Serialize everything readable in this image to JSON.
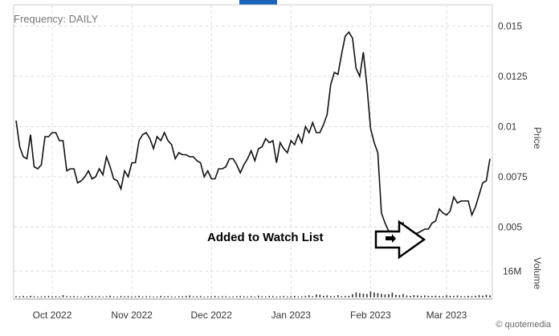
{
  "header": {
    "frequency_label": "Frequency: DAILY",
    "tab_color": "#1a63b8"
  },
  "annotation": {
    "text": "Added to Watch List",
    "marker": "arrow-icon"
  },
  "credit": {
    "text": "© quotemedia"
  },
  "axes": {
    "price_title": "Price",
    "volume_title": "Volume"
  },
  "colors": {
    "line": "#111111",
    "grid": "#cccccc",
    "bars": "#333333"
  },
  "chart_data": [
    {
      "type": "line",
      "title": "",
      "xlabel": "",
      "ylabel": "Price",
      "ylim": [
        0.0035,
        0.0155
      ],
      "grid": true,
      "y_ticks": [
        0.005,
        0.0075,
        0.01,
        0.0125,
        0.015
      ],
      "y_tick_labels": [
        "0.005",
        "0.0075",
        "0.01",
        "0.0125",
        "0.015"
      ],
      "x_ticks": [
        "Oct 2022",
        "Nov 2022",
        "Dec 2022",
        "Jan 2023",
        "Feb 2023",
        "Mar 2023"
      ],
      "series": [
        {
          "values": [
            0.0103,
            0.009,
            0.0085,
            0.0084,
            0.0096,
            0.008,
            0.0079,
            0.0081,
            0.0095,
            0.0095,
            0.0097,
            0.0097,
            0.0093,
            0.0093,
            0.0078,
            0.0079,
            0.0079,
            0.0072,
            0.0073,
            0.0075,
            0.0078,
            0.0074,
            0.0075,
            0.0079,
            0.0076,
            0.0085,
            0.008,
            0.0074,
            0.0073,
            0.0069,
            0.0078,
            0.0075,
            0.0082,
            0.0082,
            0.0093,
            0.0096,
            0.0097,
            0.0094,
            0.0089,
            0.0095,
            0.0093,
            0.0097,
            0.0093,
            0.0091,
            0.0084,
            0.0087,
            0.0086,
            0.0086,
            0.0085,
            0.0085,
            0.0083,
            0.0082,
            0.0075,
            0.0078,
            0.0074,
            0.0074,
            0.0079,
            0.0079,
            0.008,
            0.0084,
            0.0084,
            0.0081,
            0.0077,
            0.0081,
            0.0084,
            0.0088,
            0.0083,
            0.0089,
            0.009,
            0.0094,
            0.0092,
            0.0093,
            0.0082,
            0.0092,
            0.0089,
            0.0087,
            0.0093,
            0.0091,
            0.0096,
            0.0092,
            0.01,
            0.0097,
            0.0102,
            0.0097,
            0.0097,
            0.0101,
            0.0106,
            0.0121,
            0.0127,
            0.0126,
            0.0136,
            0.0145,
            0.0147,
            0.0144,
            0.0129,
            0.0125,
            0.0137,
            0.012,
            0.0099,
            0.0092,
            0.0087,
            0.0057,
            0.0052,
            0.0048,
            0.0048,
            0.0046,
            0.0047,
            0.0052,
            0.0046,
            0.0044,
            0.0047,
            0.0047,
            0.0048,
            0.0049,
            0.0049,
            0.0052,
            0.0053,
            0.0059,
            0.0057,
            0.0056,
            0.0058,
            0.0065,
            0.0062,
            0.0063,
            0.0063,
            0.0063,
            0.0056,
            0.006,
            0.0066,
            0.0072,
            0.0073,
            0.0084
          ]
        }
      ]
    },
    {
      "type": "bar",
      "title": "",
      "xlabel": "",
      "ylabel": "Volume",
      "ylim": [
        0,
        22000000
      ],
      "y_ticks": [
        16000000
      ],
      "y_tick_labels": [
        "16M"
      ],
      "series": [
        {
          "values": [
            0.8,
            0.7,
            0.9,
            0.6,
            1.0,
            0.7,
            0.5,
            0.6,
            0.8,
            0.9,
            0.7,
            0.8,
            0.6,
            1.4,
            0.8,
            0.7,
            0.9,
            0.6,
            0.5,
            0.7,
            0.9,
            0.8,
            0.6,
            0.8,
            0.5,
            0.7,
            1.1,
            0.6,
            0.5,
            0.9,
            0.7,
            0.8,
            0.6,
            0.7,
            1.0,
            0.6,
            0.8,
            0.7,
            0.5,
            0.6,
            0.9,
            0.7,
            0.8,
            0.6,
            0.5,
            0.8,
            0.7,
            0.9,
            1.2,
            0.6,
            0.7,
            0.8,
            0.5,
            0.6,
            0.7,
            0.9,
            0.6,
            0.8,
            0.7,
            0.5,
            0.6,
            0.8,
            0.9,
            0.7,
            0.6,
            0.8,
            0.5,
            1.1,
            0.7,
            0.6,
            0.9,
            0.8,
            0.5,
            0.7,
            0.9,
            0.6,
            0.8,
            1.0,
            0.6,
            0.7,
            0.9,
            1.3,
            0.8,
            1.8,
            1.6,
            1.0,
            1.2,
            0.9,
            0.8,
            1.4,
            0.7,
            0.9,
            1.0,
            2.0,
            3.1,
            2.6,
            2.3,
            2.1,
            3.6,
            3.0,
            2.6,
            2.2,
            1.8,
            2.0,
            3.0,
            1.6,
            1.4,
            2.1,
            1.2,
            1.0,
            1.4,
            1.2,
            1.0,
            1.2,
            1.0,
            0.9,
            1.1,
            0.9,
            0.8,
            1.3,
            1.0,
            0.9,
            1.2,
            0.8,
            0.7,
            1.0,
            0.8,
            1.0,
            1.4,
            1.1,
            1.6,
            1.3
          ]
        }
      ]
    }
  ]
}
